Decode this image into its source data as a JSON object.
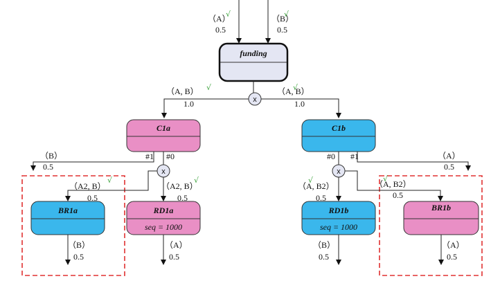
{
  "colors": {
    "pink": "#e98fc5",
    "blue": "#3ab7ec",
    "grey": "#e4e6f3",
    "dash": "#e03030"
  },
  "nodes": {
    "funding": {
      "title": "funding"
    },
    "c1a": {
      "title": "C1a"
    },
    "c1b": {
      "title": "C1b"
    },
    "br1a": {
      "title": "BR1a"
    },
    "rd1a": {
      "title": "RD1a",
      "sub": "seq = 1000"
    },
    "rd1b": {
      "title": "RD1b",
      "sub": "seq = 1000"
    },
    "br1b": {
      "title": "BR1b"
    }
  },
  "gates": {
    "symbol": "x"
  },
  "edges": {
    "in_a": {
      "tag": "（A）",
      "check": "√",
      "prob": "0.5"
    },
    "in_b": {
      "tag": "（B）",
      "check": "√",
      "prob": "0.5"
    },
    "f_c1a": {
      "tag": "（A,  B）",
      "check": "√",
      "prob": "1.0"
    },
    "f_c1b": {
      "tag": "（A,  B）",
      "check": "√",
      "prob": "1.0"
    },
    "c1a_port1": "#1",
    "c1a_port0": "#0",
    "c1b_port0": "#0",
    "c1b_port1": "#1",
    "c1a_left": {
      "tag": "（B）",
      "prob": "0.5"
    },
    "c1b_right": {
      "tag": "（A）",
      "prob": "0.5"
    },
    "g_br1a": {
      "tag": "（A2,  B）",
      "check": "√",
      "prob": "0.5"
    },
    "g_rd1a": {
      "tag": "（A2,  B）",
      "check": "√",
      "prob": "0.5"
    },
    "g_rd1b": {
      "tag": "（A,  B2）",
      "check": "√",
      "prob": "0.5"
    },
    "g_br1b": {
      "tag": "（A,  B2）",
      "check": "√",
      "prob": "0.5"
    },
    "br1a_out": {
      "tag": "（B）",
      "prob": "0.5"
    },
    "rd1a_out": {
      "tag": "（A）",
      "prob": "0.5"
    },
    "rd1b_out": {
      "tag": "（B）",
      "prob": "0.5"
    },
    "br1b_out": {
      "tag": "（A）",
      "prob": "0.5"
    }
  }
}
